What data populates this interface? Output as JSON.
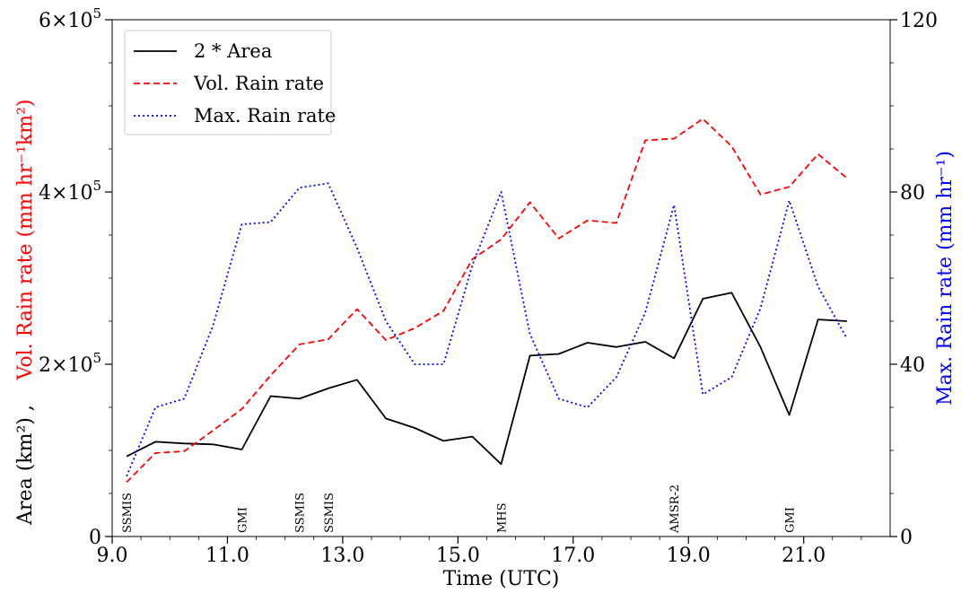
{
  "chart_data": {
    "type": "line",
    "x": [
      9.25,
      9.75,
      10.25,
      10.75,
      11.25,
      11.75,
      12.25,
      12.75,
      13.25,
      13.75,
      14.25,
      14.75,
      15.25,
      15.75,
      16.25,
      16.75,
      17.25,
      17.75,
      18.25,
      18.75,
      19.25,
      19.75,
      20.25,
      20.75,
      21.25,
      21.75
    ],
    "series": [
      {
        "name": "2 * Area",
        "axis": "left",
        "color": "#000000",
        "style": "solid",
        "values": [
          93000,
          110000,
          108000,
          107000,
          101000,
          163000,
          160000,
          172000,
          182000,
          137000,
          126000,
          111000,
          116000,
          84000,
          210000,
          212000,
          225000,
          220000,
          226000,
          207000,
          276000,
          283000,
          220000,
          141000,
          252000,
          250000
        ]
      },
      {
        "name": "Vol. Rain rate",
        "axis": "left",
        "color": "#ff0000",
        "style": "dashed",
        "values": [
          63000,
          97000,
          99000,
          123000,
          148000,
          187000,
          223000,
          229000,
          264000,
          228000,
          242000,
          262000,
          322000,
          345000,
          388000,
          346000,
          367000,
          364000,
          460000,
          462000,
          485000,
          453000,
          397000,
          406000,
          444000,
          416000
        ]
      },
      {
        "name": "Max. Rain rate",
        "axis": "right",
        "color": "#0000ff",
        "style": "dotted",
        "values": [
          14,
          30,
          32,
          49,
          72.5,
          73,
          81,
          82,
          67,
          50,
          40,
          40,
          63,
          80,
          47,
          32,
          30,
          37,
          52,
          77,
          33,
          37,
          53,
          78,
          58,
          46
        ]
      }
    ],
    "xlabel": "Time (UTC)",
    "ylabel_left_area": "Area (km²) ,",
    "ylabel_left_vol": "Vol. Rain rate (mm hr⁻¹km²)",
    "ylabel_right": "Max. Rain rate (mm hr⁻¹)",
    "xlim": [
      9.0,
      22.5
    ],
    "ylim_left": [
      0,
      600000
    ],
    "ylim_right": [
      0,
      120
    ],
    "xticks": [
      9.0,
      11.0,
      13.0,
      15.0,
      17.0,
      19.0,
      21.0
    ],
    "xtick_labels": [
      "9.0",
      "11.0",
      "13.0",
      "15.0",
      "17.0",
      "19.0",
      "21.0"
    ],
    "left_ticks": [
      {
        "value": 0,
        "base": "0",
        "exp": ""
      },
      {
        "value": 200000,
        "base": "2×10",
        "exp": "5"
      },
      {
        "value": 400000,
        "base": "4×10",
        "exp": "5"
      },
      {
        "value": 600000,
        "base": "6×10",
        "exp": "5"
      }
    ],
    "right_ticks": [
      0,
      40,
      80,
      120
    ],
    "legend_position": "upper-left",
    "annotations": [
      {
        "x": 9.25,
        "text": "SSMIS"
      },
      {
        "x": 11.25,
        "text": "GMI"
      },
      {
        "x": 12.25,
        "text": "SSMIS"
      },
      {
        "x": 12.75,
        "text": "SSMIS"
      },
      {
        "x": 15.75,
        "text": "MHS"
      },
      {
        "x": 18.75,
        "text": "AMSR-2"
      },
      {
        "x": 20.75,
        "text": "GMI"
      }
    ],
    "colors": {
      "left_label": "#ff0000",
      "right_label": "#0000ff",
      "area_label": "#000000"
    }
  }
}
